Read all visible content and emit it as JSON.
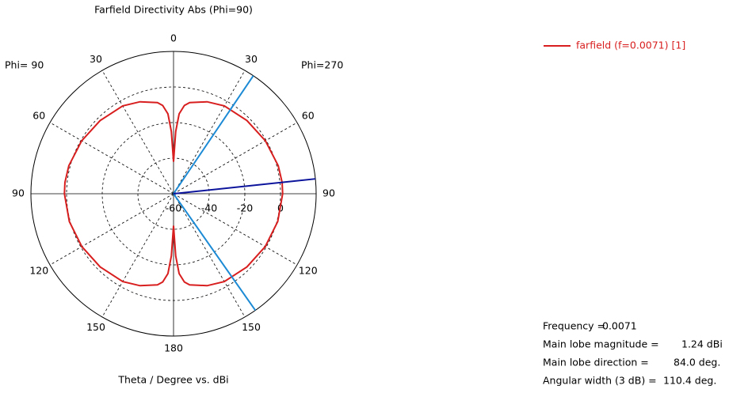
{
  "chart_data": {
    "type": "polar",
    "title": "Farfield Directivity Abs (Phi=90)",
    "xlabel": "Theta / Degree vs. dBi",
    "left_label": "Phi= 90",
    "right_label": "Phi=270",
    "rlim": [
      -60,
      20
    ],
    "rticks": [
      -60,
      -40,
      -20,
      0
    ],
    "thetaticks": [
      0,
      30,
      60,
      90,
      120,
      150,
      180,
      {
        "value": 210,
        "label": "150"
      },
      {
        "value": 240,
        "label": "120"
      },
      {
        "value": 270,
        "label": "90"
      },
      {
        "value": 300,
        "label": "60"
      },
      {
        "value": 330,
        "label": "30"
      }
    ],
    "series": [
      {
        "name": "farfield (f=0.0071) [1]",
        "color": "#d81e1e",
        "theta": [
          0,
          2,
          4,
          7,
          10,
          20,
          30,
          45,
          60,
          75,
          84,
          90,
          105,
          120,
          135,
          150,
          160,
          170,
          173,
          176,
          178,
          180,
          182,
          184,
          187,
          190,
          200,
          210,
          225,
          240,
          255,
          270,
          276,
          285,
          300,
          315,
          330,
          340,
          350,
          353,
          356,
          358
        ],
        "values": [
          -42,
          -25,
          -15,
          -10,
          -8,
          -5,
          -3,
          -1.8,
          -0.5,
          0.8,
          1.24,
          1.2,
          0.5,
          -0.6,
          -1.8,
          -3,
          -5,
          -8,
          -10,
          -15,
          -25,
          -42,
          -25,
          -15,
          -10,
          -8,
          -5,
          -3,
          -1.8,
          -0.6,
          0.5,
          1.2,
          1.24,
          0.8,
          -0.5,
          -1.8,
          -3,
          -5,
          -8,
          -10,
          -15,
          -25
        ]
      }
    ],
    "main_lobe_line": {
      "theta": 84.0,
      "color": "#0c149c"
    },
    "beam_edges": {
      "theta": [
        34,
        145
      ],
      "color": "#1c8ad4"
    },
    "info": [
      {
        "label": "Frequency =",
        "value": "0.0071"
      },
      {
        "label": "Main lobe magnitude =",
        "value": "1.24 dBi"
      },
      {
        "label": "Main lobe direction =",
        "value": "84.0 deg."
      },
      {
        "label": "Angular width (3 dB) =",
        "value": "110.4 deg."
      }
    ]
  }
}
